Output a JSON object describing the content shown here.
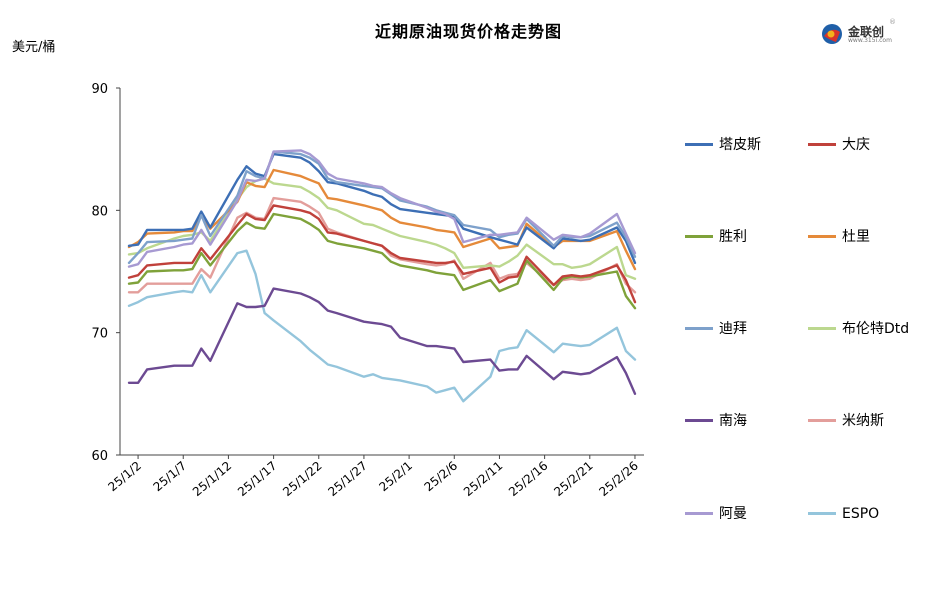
{
  "chart_data": {
    "type": "line",
    "title": "近期原油现货价格走势图",
    "ylabel": "美元/桶",
    "xlabel": "",
    "ylim": [
      60,
      90
    ],
    "yticks": [
      60,
      70,
      80,
      90
    ],
    "grid": false,
    "legend_position": "right",
    "x_tick_labels": [
      "25/1/2",
      "25/1/7",
      "25/1/12",
      "25/1/17",
      "25/1/22",
      "25/1/27",
      "25/2/1",
      "25/2/6",
      "25/2/11",
      "25/2/16",
      "25/2/21",
      "25/2/26"
    ],
    "x_tick_days": [
      2,
      7,
      12,
      17,
      22,
      27,
      32,
      37,
      42,
      47,
      52,
      57
    ],
    "x_days": [
      1,
      2,
      3,
      6,
      7,
      8,
      9,
      10,
      13,
      14,
      15,
      16,
      17,
      20,
      21,
      22,
      23,
      24,
      27,
      28,
      29,
      30,
      31,
      34,
      35,
      36,
      37,
      38,
      41,
      42,
      43,
      44,
      45,
      48,
      49,
      50,
      51,
      52,
      55,
      56,
      57
    ],
    "series": [
      {
        "name": "塔皮斯",
        "color": "#3d6fb5",
        "values": [
          77.1,
          77.2,
          78.4,
          78.4,
          78.4,
          78.5,
          79.9,
          78.6,
          82.5,
          83.6,
          83.0,
          82.8,
          84.6,
          84.3,
          83.9,
          83.2,
          82.3,
          82.2,
          81.6,
          81.3,
          81.1,
          80.5,
          80.1,
          79.8,
          79.7,
          79.6,
          79.5,
          78.5,
          77.8,
          77.6,
          77.4,
          77.2,
          78.6,
          76.9,
          77.7,
          77.6,
          77.5,
          77.6,
          78.6,
          77.5,
          75.7
        ]
      },
      {
        "name": "大庆",
        "color": "#c0413b",
        "values": [
          74.5,
          74.7,
          75.5,
          75.7,
          75.7,
          75.7,
          76.9,
          76.0,
          78.8,
          79.7,
          79.3,
          79.2,
          80.4,
          80.0,
          79.8,
          79.3,
          78.2,
          78.1,
          77.5,
          77.3,
          77.1,
          76.5,
          76.1,
          75.8,
          75.7,
          75.7,
          75.8,
          74.8,
          75.3,
          74.1,
          74.5,
          74.6,
          76.2,
          73.9,
          74.6,
          74.7,
          74.6,
          74.7,
          75.5,
          74.3,
          72.5
        ]
      },
      {
        "name": "胜利",
        "color": "#7fa23a",
        "values": [
          74.0,
          74.1,
          75.0,
          75.1,
          75.1,
          75.2,
          76.5,
          75.5,
          78.3,
          79.0,
          78.6,
          78.5,
          79.7,
          79.3,
          78.9,
          78.4,
          77.5,
          77.3,
          76.9,
          76.7,
          76.5,
          75.8,
          75.5,
          75.1,
          74.9,
          74.8,
          74.7,
          73.5,
          74.3,
          73.4,
          73.7,
          74.0,
          75.9,
          73.5,
          74.4,
          74.6,
          74.5,
          74.6,
          75.0,
          73.0,
          72.0
        ]
      },
      {
        "name": "杜里",
        "color": "#e58a3a",
        "values": [
          77.0,
          77.4,
          78.1,
          78.2,
          78.3,
          78.3,
          79.7,
          78.5,
          80.7,
          82.3,
          82.0,
          81.9,
          83.3,
          82.8,
          82.5,
          82.2,
          81.0,
          80.9,
          80.4,
          80.2,
          80.0,
          79.4,
          79.0,
          78.6,
          78.4,
          78.3,
          78.2,
          77.0,
          77.7,
          76.9,
          77.0,
          77.1,
          78.9,
          77.0,
          77.5,
          77.5,
          77.5,
          77.5,
          78.3,
          76.7,
          75.2
        ]
      },
      {
        "name": "迪拜",
        "color": "#7ea1cb",
        "values": [
          75.7,
          76.5,
          77.4,
          77.5,
          77.6,
          77.7,
          79.6,
          77.9,
          81.2,
          83.2,
          82.8,
          82.6,
          84.8,
          84.6,
          84.3,
          83.8,
          82.6,
          82.3,
          82.0,
          81.9,
          81.8,
          81.3,
          80.8,
          80.3,
          80.0,
          79.8,
          79.6,
          78.8,
          78.4,
          77.8,
          78.0,
          78.1,
          79.3,
          77.1,
          77.9,
          77.8,
          77.8,
          77.9,
          79.0,
          77.8,
          76.2
        ]
      },
      {
        "name": "布伦特Dtd",
        "color": "#bcd88f",
        "values": [
          76.4,
          76.5,
          76.9,
          77.7,
          77.9,
          78.0,
          78.2,
          77.5,
          80.9,
          81.9,
          82.4,
          82.6,
          82.2,
          81.9,
          81.5,
          81.0,
          80.2,
          80.0,
          78.9,
          78.8,
          78.5,
          78.2,
          77.9,
          77.4,
          77.2,
          76.9,
          76.5,
          75.3,
          75.5,
          75.4,
          75.8,
          76.3,
          77.2,
          75.6,
          75.6,
          75.3,
          75.4,
          75.6,
          77.0,
          74.7,
          74.4
        ]
      },
      {
        "name": "南海",
        "color": "#6c4a92",
        "values": [
          65.9,
          65.9,
          67.0,
          67.3,
          67.3,
          67.3,
          68.7,
          67.7,
          72.4,
          72.1,
          72.1,
          72.2,
          73.6,
          73.2,
          72.9,
          72.5,
          71.8,
          71.6,
          70.9,
          70.8,
          70.7,
          70.5,
          69.6,
          68.9,
          68.9,
          68.8,
          68.7,
          67.6,
          67.8,
          66.9,
          67.0,
          67.0,
          68.1,
          66.2,
          66.8,
          66.7,
          66.6,
          66.7,
          68.0,
          66.7,
          65.0
        ]
      },
      {
        "name": "米纳斯",
        "color": "#e39e9b",
        "values": [
          73.3,
          73.3,
          74.0,
          74.0,
          74.0,
          74.0,
          75.2,
          74.5,
          79.4,
          79.8,
          79.4,
          79.3,
          81.0,
          80.7,
          80.3,
          79.8,
          78.5,
          78.2,
          77.5,
          77.3,
          77.1,
          76.3,
          76.0,
          75.6,
          75.5,
          75.6,
          75.9,
          74.4,
          75.7,
          74.4,
          74.7,
          74.8,
          75.7,
          73.9,
          74.3,
          74.4,
          74.3,
          74.4,
          75.6,
          74.0,
          73.3
        ]
      },
      {
        "name": "阿曼",
        "color": "#a79ad2",
        "values": [
          75.4,
          75.6,
          76.6,
          77.0,
          77.2,
          77.3,
          78.4,
          77.2,
          80.8,
          82.5,
          82.4,
          82.6,
          84.8,
          84.9,
          84.6,
          84.0,
          83.0,
          82.6,
          82.2,
          82.0,
          81.9,
          81.4,
          81.0,
          80.2,
          79.9,
          79.7,
          79.3,
          77.4,
          78.0,
          78.0,
          78.1,
          78.2,
          79.4,
          77.6,
          78.0,
          77.9,
          77.8,
          78.1,
          79.7,
          78.1,
          76.5
        ]
      },
      {
        "name": "ESPO",
        "color": "#94c5dc",
        "values": [
          72.2,
          72.5,
          72.9,
          73.3,
          73.4,
          73.3,
          74.7,
          73.3,
          76.5,
          76.7,
          74.8,
          71.6,
          71.0,
          69.3,
          68.6,
          68.0,
          67.4,
          67.2,
          66.4,
          66.6,
          66.3,
          66.2,
          66.1,
          65.6,
          65.1,
          65.3,
          65.5,
          64.4,
          66.4,
          68.5,
          68.7,
          68.8,
          70.2,
          68.4,
          69.1,
          69.0,
          68.9,
          69.0,
          70.4,
          68.5,
          67.8
        ]
      }
    ]
  },
  "logo": {
    "text": "金联创",
    "url": "www.315i.com",
    "reg": "®"
  }
}
